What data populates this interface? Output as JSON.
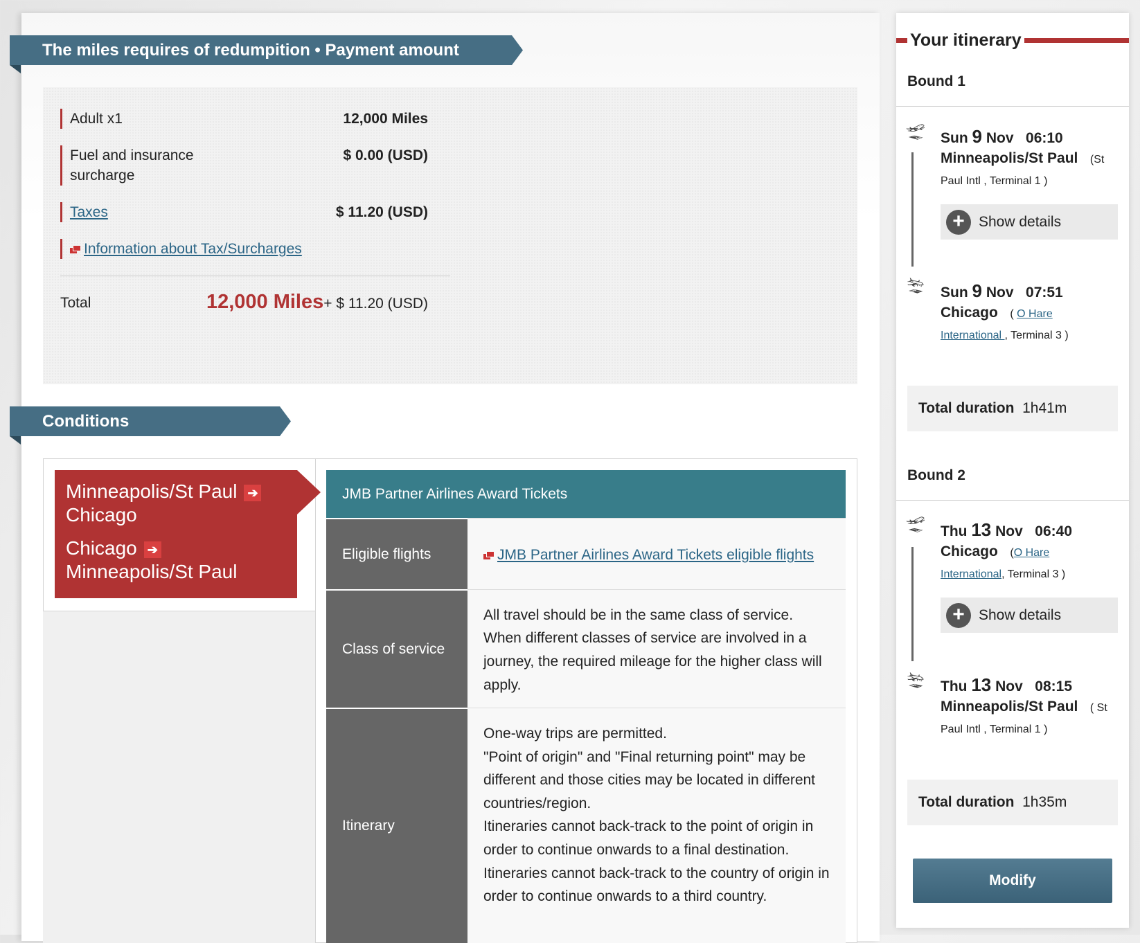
{
  "payment": {
    "title": "The miles requires of redumpition • Payment amount",
    "rows": [
      {
        "label": "Adult x1",
        "value": "12,000 Miles"
      },
      {
        "label": "Fuel and insurance surcharge",
        "value": "$ 0.00 (USD)"
      },
      {
        "label": "Taxes",
        "value": "$ 11.20 (USD)"
      }
    ],
    "info_link": "Information about Tax/Surcharges",
    "total_label": "Total",
    "total_miles": "12,000 Miles",
    "total_cash": "+ $ 11.20 (USD)"
  },
  "conditions": {
    "title": "Conditions",
    "routes": [
      {
        "from": "Minneapolis/St Paul",
        "to": "Chicago"
      },
      {
        "from": "Chicago",
        "to": "Minneapolis/St Paul"
      }
    ],
    "table_header": "JMB Partner Airlines Award Tickets",
    "rows": [
      {
        "label": "Eligible flights",
        "link": "JMB Partner Airlines Award Tickets eligible flights"
      },
      {
        "label": "Class of service",
        "text": "All travel should be in the same class of service. When different classes of service are involved in a journey, the required mileage for the higher class will apply."
      },
      {
        "label": "Itinerary",
        "lines": [
          "One-way trips are permitted.",
          "\"Point of origin\" and \"Final returning point\" may be different and those cities may be located in different countries/region.",
          "Itineraries cannot back-track to the point of origin in order to continue onwards to a final destination.",
          "Itineraries cannot back-track to the country of origin in order to continue onwards to a third country."
        ]
      }
    ]
  },
  "itinerary": {
    "title": "Your itinerary",
    "show_details": "Show details",
    "duration_label": "Total duration",
    "modify": "Modify",
    "bounds": [
      {
        "label": "Bound 1",
        "dep": {
          "dow": "Sun",
          "day": "9",
          "mon": "Nov",
          "time": "06:10",
          "city": "Minneapolis/St Paul",
          "airport_a": "(St",
          "airport_b": "Paul Intl ,  Terminal 1 )"
        },
        "arr": {
          "dow": "Sun",
          "day": "9",
          "mon": "Nov",
          "time": "07:51",
          "city": "Chicago",
          "airport_link_a": "O Hare",
          "airport_link_b": "International ",
          "terminal": ",  Terminal 3 )"
        },
        "duration": "1h41m"
      },
      {
        "label": "Bound 2",
        "dep": {
          "dow": "Thu",
          "day": "13",
          "mon": "Nov",
          "time": "06:40",
          "city": "Chicago",
          "airport_link_a": "O Hare",
          "airport_link_b": "International",
          "terminal": ",  Terminal 3 )"
        },
        "arr": {
          "dow": "Thu",
          "day": "13",
          "mon": "Nov",
          "time": "08:15",
          "city": "Minneapolis/St Paul",
          "airport_a": "( St",
          "airport_b": "Paul Intl ,  Terminal 1 )"
        },
        "duration": "1h35m"
      }
    ]
  },
  "colors": {
    "banner": "#466e84",
    "accent_red": "#b03333",
    "teal": "#387d8a",
    "label_gray": "#666666",
    "link": "#2b6586"
  }
}
